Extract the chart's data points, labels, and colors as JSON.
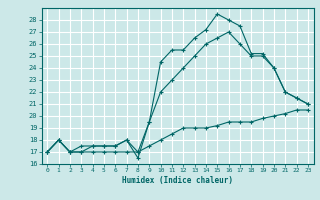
{
  "xlabel": "Humidex (Indice chaleur)",
  "xlim": [
    -0.5,
    23.5
  ],
  "ylim": [
    16,
    29
  ],
  "yticks": [
    16,
    17,
    18,
    19,
    20,
    21,
    22,
    23,
    24,
    25,
    26,
    27,
    28
  ],
  "xticks": [
    0,
    1,
    2,
    3,
    4,
    5,
    6,
    7,
    8,
    9,
    10,
    11,
    12,
    13,
    14,
    15,
    16,
    17,
    18,
    19,
    20,
    21,
    22,
    23
  ],
  "bg_color": "#cce8e8",
  "grid_color": "#ffffff",
  "line_color": "#006666",
  "lines": [
    {
      "x": [
        0,
        1,
        2,
        3,
        4,
        5,
        6,
        7,
        8,
        9,
        10,
        11,
        12,
        13,
        14,
        15,
        16,
        17,
        18,
        19,
        20,
        21,
        22,
        23
      ],
      "y": [
        17,
        18,
        17,
        17,
        17,
        17,
        17,
        17,
        17,
        17.5,
        18,
        18.5,
        19,
        19,
        19,
        19.2,
        19.5,
        19.5,
        19.5,
        19.8,
        20,
        20.2,
        20.5,
        20.5
      ]
    },
    {
      "x": [
        0,
        1,
        2,
        3,
        4,
        5,
        6,
        7,
        8,
        9,
        10,
        11,
        12,
        13,
        14,
        15,
        16,
        17,
        18,
        19,
        20,
        21,
        22,
        23
      ],
      "y": [
        17,
        18,
        17,
        17,
        17.5,
        17.5,
        17.5,
        18,
        17,
        19.5,
        24.5,
        25.5,
        25.5,
        26.5,
        27.2,
        28.5,
        28,
        27.5,
        25.2,
        25.2,
        24,
        22,
        21.5,
        21
      ]
    },
    {
      "x": [
        0,
        1,
        2,
        3,
        4,
        5,
        6,
        7,
        8,
        9,
        10,
        11,
        12,
        13,
        14,
        15,
        16,
        17,
        18,
        19,
        20,
        21,
        22,
        23
      ],
      "y": [
        17,
        18,
        17,
        17.5,
        17.5,
        17.5,
        17.5,
        18,
        16.5,
        19.5,
        22,
        23,
        24,
        25,
        26,
        26.5,
        27,
        26,
        25,
        25,
        24,
        22,
        21.5,
        21
      ]
    }
  ]
}
